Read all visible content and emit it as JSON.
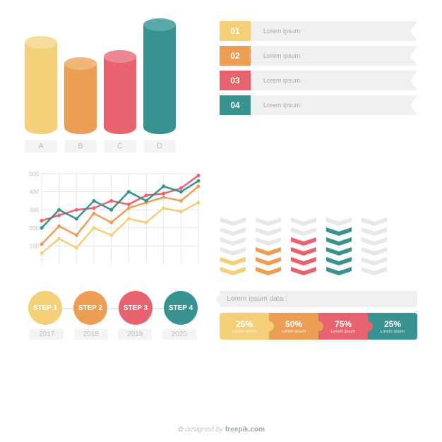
{
  "palette": {
    "yellow": "#f3d078",
    "yellow_top": "#f7dd9b",
    "orange": "#ec9f54",
    "orange_top": "#f1b779",
    "red": "#e8636f",
    "red_top": "#ed8791",
    "teal": "#379290",
    "teal_top": "#58aaa8",
    "gray": "#e7e7e7",
    "gray_top": "#f1f1f1",
    "text_muted": "#bdbdbd"
  },
  "cylinders": {
    "type": "bar-3d-cylinder",
    "bars": [
      {
        "label": "A",
        "value": 130,
        "color": "#f3d078",
        "top_color": "#f7dd9b"
      },
      {
        "label": "B",
        "value": 100,
        "color": "#ec9f54",
        "top_color": "#f1b779"
      },
      {
        "label": "C",
        "value": 110,
        "color": "#e8636f",
        "top_color": "#ed8791"
      },
      {
        "label": "D",
        "value": 155,
        "color": "#379290",
        "top_color": "#58aaa8"
      }
    ]
  },
  "ribbons": {
    "items": [
      {
        "num": "01",
        "color": "#f3d078",
        "text": "Lorem ipsum"
      },
      {
        "num": "02",
        "color": "#ec9f54",
        "text": "Lorem ipsum"
      },
      {
        "num": "03",
        "color": "#e8636f",
        "text": "Lorem ipsum"
      },
      {
        "num": "04",
        "color": "#379290",
        "text": "Lorem ipsum"
      }
    ]
  },
  "linechart": {
    "type": "line",
    "xlim": [
      0,
      9
    ],
    "ylim": [
      0,
      500
    ],
    "yticks": [
      100,
      200,
      300,
      400,
      500
    ],
    "grid_color": "#e6e6e6",
    "series": [
      {
        "color": "#f3d078",
        "points": [
          60,
          140,
          90,
          200,
          160,
          250,
          230,
          310,
          290,
          340
        ]
      },
      {
        "color": "#ec9f54",
        "points": [
          110,
          210,
          160,
          280,
          230,
          310,
          340,
          370,
          350,
          430
        ]
      },
      {
        "color": "#e8636f",
        "points": [
          240,
          270,
          300,
          310,
          350,
          330,
          380,
          390,
          420,
          490
        ]
      },
      {
        "color": "#379290",
        "points": [
          200,
          300,
          250,
          350,
          300,
          400,
          350,
          430,
          400,
          460
        ]
      }
    ]
  },
  "chevrons": {
    "type": "chevron-column",
    "max": 6,
    "columns": [
      {
        "filled": 2,
        "color": "#f3d078"
      },
      {
        "filled": 3,
        "color": "#ec9f54"
      },
      {
        "filled": 4,
        "color": "#e8636f"
      },
      {
        "filled": 5,
        "color": "#379290"
      },
      {
        "filled": 0,
        "color": "#379290"
      }
    ],
    "empty_color": "#e7e7e7"
  },
  "steps": {
    "items": [
      {
        "label": "STEP 1",
        "year": "2017",
        "color": "#f3d078"
      },
      {
        "label": "STEP 2",
        "year": "2018",
        "color": "#ec9f54"
      },
      {
        "label": "STEP 3",
        "year": "2019",
        "color": "#e8636f"
      },
      {
        "label": "STEP 4",
        "year": "2020",
        "color": "#379290"
      }
    ]
  },
  "puzzle": {
    "title": "Lorem ipsum data :",
    "sub": "Lorem ipsum",
    "pieces": [
      {
        "pct": "25%",
        "color": "#f3d078"
      },
      {
        "pct": "50%",
        "color": "#ec9f54"
      },
      {
        "pct": "75%",
        "color": "#e8636f"
      },
      {
        "pct": "25%",
        "color": "#379290"
      }
    ]
  },
  "attribution": {
    "prefix": "designed by ",
    "brand": "freepik.com",
    "flower_icon": "✿"
  }
}
